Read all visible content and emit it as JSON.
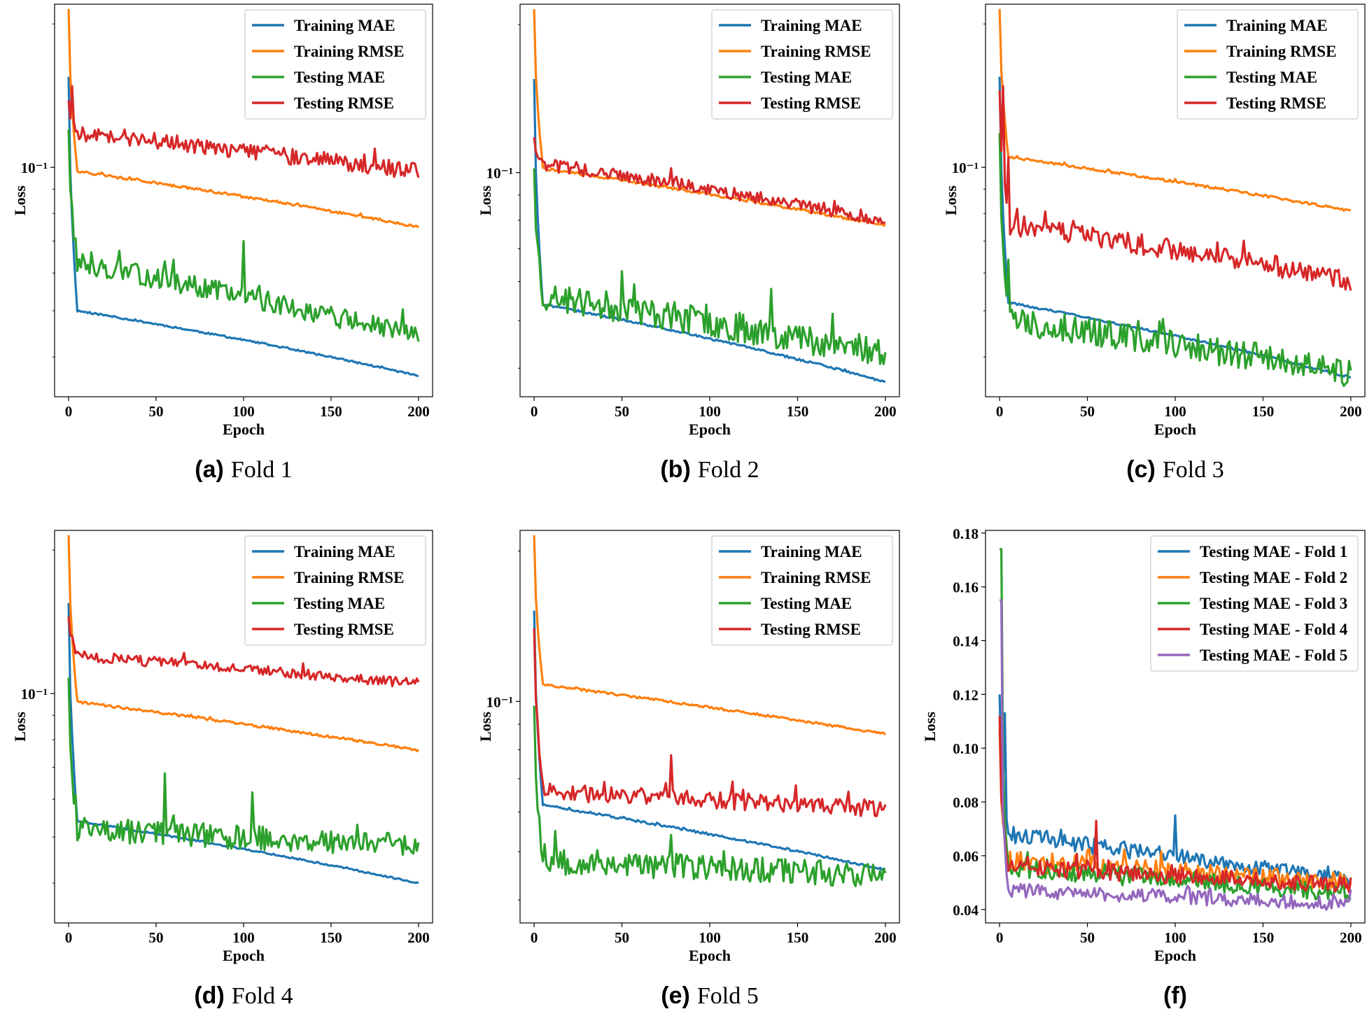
{
  "figure": {
    "colors": {
      "blue": "#1f77b4",
      "orange": "#ff7f0e",
      "green": "#2ca02c",
      "red": "#d62728",
      "purple": "#9467bd"
    }
  },
  "chart_data": [
    {
      "id": "a",
      "caption_letter": "(a)",
      "caption_text": "Fold 1",
      "type": "line",
      "yscale": "log",
      "xlabel": "Epoch",
      "ylabel": "Loss",
      "xlim": [
        -8,
        208
      ],
      "ylim": [
        0.033,
        0.22
      ],
      "x_ticks": [
        0,
        50,
        100,
        150,
        200
      ],
      "x_tick_labels": [
        "0",
        "50",
        "100",
        "150",
        "200"
      ],
      "y_ticks": [
        0.1
      ],
      "y_tick_labels": [
        "10⁻¹"
      ],
      "legend_position": "top-right",
      "series": [
        {
          "name": "Training MAE",
          "color": "blue",
          "start": 0.155,
          "drop": 0.05,
          "end": 0.0365,
          "noise": 0.004,
          "seed": 11
        },
        {
          "name": "Training RMSE",
          "color": "orange",
          "start": 0.215,
          "drop": 0.098,
          "end": 0.075,
          "noise": 0.006,
          "seed": 12
        },
        {
          "name": "Testing MAE",
          "color": "green",
          "start": 0.12,
          "drop": 0.063,
          "end": 0.044,
          "noise": 0.05,
          "spikes": [
            [
              60,
              0.064
            ],
            [
              100,
              0.07
            ]
          ],
          "seed": 13
        },
        {
          "name": "Testing RMSE",
          "color": "red",
          "start": 0.138,
          "drop": 0.118,
          "end": 0.098,
          "noise": 0.04,
          "spikes": [
            [
              2,
              0.148
            ]
          ],
          "seed": 14
        }
      ]
    },
    {
      "id": "b",
      "caption_letter": "(b)",
      "caption_text": "Fold 2",
      "type": "line",
      "yscale": "log",
      "xlabel": "Epoch",
      "ylabel": "Loss",
      "xlim": [
        -8,
        208
      ],
      "ylim": [
        0.035,
        0.22
      ],
      "x_ticks": [
        0,
        50,
        100,
        150,
        200
      ],
      "x_tick_labels": [
        "0",
        "50",
        "100",
        "150",
        "200"
      ],
      "y_ticks": [
        0.1
      ],
      "y_tick_labels": [
        "10⁻¹"
      ],
      "legend_position": "top-right",
      "series": [
        {
          "name": "Training MAE",
          "color": "blue",
          "start": 0.155,
          "drop": 0.054,
          "end": 0.0375,
          "noise": 0.005,
          "seed": 21
        },
        {
          "name": "Training RMSE",
          "color": "orange",
          "start": 0.215,
          "drop": 0.102,
          "end": 0.078,
          "noise": 0.006,
          "seed": 22
        },
        {
          "name": "Testing MAE",
          "color": "green",
          "start": 0.102,
          "drop": 0.056,
          "end": 0.043,
          "noise": 0.07,
          "spikes": [
            [
              50,
              0.063
            ],
            [
              135,
              0.058
            ]
          ],
          "seed": 23
        },
        {
          "name": "Testing RMSE",
          "color": "red",
          "start": 0.118,
          "drop": 0.104,
          "end": 0.08,
          "noise": 0.03,
          "seed": 24
        }
      ]
    },
    {
      "id": "c",
      "caption_letter": "(c)",
      "caption_text": "Fold 3",
      "type": "line",
      "yscale": "log",
      "xlabel": "Epoch",
      "ylabel": "Loss",
      "xlim": [
        -8,
        208
      ],
      "ylim": [
        0.033,
        0.22
      ],
      "x_ticks": [
        0,
        50,
        100,
        150,
        200
      ],
      "x_tick_labels": [
        "0",
        "50",
        "100",
        "150",
        "200"
      ],
      "y_ticks": [
        0.1
      ],
      "y_tick_labels": [
        "10⁻¹"
      ],
      "legend_position": "top-right",
      "series": [
        {
          "name": "Training MAE",
          "color": "blue",
          "start": 0.155,
          "drop": 0.052,
          "end": 0.0362,
          "noise": 0.005,
          "seed": 31
        },
        {
          "name": "Training RMSE",
          "color": "orange",
          "start": 0.215,
          "drop": 0.105,
          "end": 0.081,
          "noise": 0.006,
          "seed": 32
        },
        {
          "name": "Testing MAE",
          "color": "green",
          "start": 0.118,
          "drop": 0.048,
          "end": 0.037,
          "noise": 0.07,
          "spikes": [
            [
              5,
              0.064
            ]
          ],
          "seed": 33
        },
        {
          "name": "Testing RMSE",
          "color": "red",
          "start": 0.145,
          "drop": 0.076,
          "end": 0.058,
          "noise": 0.05,
          "spikes": [
            [
              2,
              0.148
            ],
            [
              5,
              0.105
            ]
          ],
          "seed": 34
        }
      ]
    },
    {
      "id": "d",
      "caption_letter": "(d)",
      "caption_text": "Fold 4",
      "type": "line",
      "yscale": "log",
      "xlabel": "Epoch",
      "ylabel": "Loss",
      "xlim": [
        -8,
        208
      ],
      "ylim": [
        0.033,
        0.22
      ],
      "x_ticks": [
        0,
        50,
        100,
        150,
        200
      ],
      "x_tick_labels": [
        "0",
        "50",
        "100",
        "150",
        "200"
      ],
      "y_ticks": [
        0.1
      ],
      "y_tick_labels": [
        "10⁻¹"
      ],
      "legend_position": "top-right",
      "series": [
        {
          "name": "Training MAE",
          "color": "blue",
          "start": 0.155,
          "drop": 0.054,
          "end": 0.04,
          "noise": 0.004,
          "seed": 41
        },
        {
          "name": "Training RMSE",
          "color": "orange",
          "start": 0.215,
          "drop": 0.096,
          "end": 0.076,
          "noise": 0.006,
          "seed": 42
        },
        {
          "name": "Testing MAE",
          "color": "green",
          "start": 0.108,
          "drop": 0.052,
          "end": 0.048,
          "noise": 0.06,
          "spikes": [
            [
              55,
              0.068
            ],
            [
              105,
              0.062
            ]
          ],
          "seed": 43
        },
        {
          "name": "Testing RMSE",
          "color": "red",
          "start": 0.145,
          "drop": 0.12,
          "end": 0.105,
          "noise": 0.025,
          "seed": 44
        }
      ]
    },
    {
      "id": "e",
      "caption_letter": "(e)",
      "caption_text": "Fold 5",
      "type": "line",
      "yscale": "log",
      "xlabel": "Epoch",
      "ylabel": "Loss",
      "xlim": [
        -8,
        208
      ],
      "ylim": [
        0.036,
        0.22
      ],
      "x_ticks": [
        0,
        50,
        100,
        150,
        200
      ],
      "x_tick_labels": [
        "0",
        "50",
        "100",
        "150",
        "200"
      ],
      "y_ticks": [
        0.1
      ],
      "y_tick_labels": [
        "10⁻¹"
      ],
      "legend_position": "top-right",
      "series": [
        {
          "name": "Training MAE",
          "color": "blue",
          "start": 0.152,
          "drop": 0.062,
          "end": 0.046,
          "noise": 0.005,
          "seed": 51
        },
        {
          "name": "Training RMSE",
          "color": "orange",
          "start": 0.215,
          "drop": 0.108,
          "end": 0.086,
          "noise": 0.005,
          "seed": 52
        },
        {
          "name": "Testing MAE",
          "color": "green",
          "start": 0.098,
          "drop": 0.048,
          "end": 0.045,
          "noise": 0.06,
          "spikes": [
            [
              12,
              0.055
            ],
            [
              78,
              0.054
            ]
          ],
          "seed": 53
        },
        {
          "name": "Testing RMSE",
          "color": "red",
          "start": 0.14,
          "drop": 0.066,
          "end": 0.061,
          "noise": 0.04,
          "spikes": [
            [
              78,
              0.078
            ]
          ],
          "seed": 54
        }
      ]
    },
    {
      "id": "f",
      "caption_letter": "(f)",
      "caption_text": "",
      "type": "line",
      "yscale": "linear",
      "xlabel": "Epoch",
      "ylabel": "Loss",
      "xlim": [
        -8,
        208
      ],
      "ylim": [
        0.035,
        0.181
      ],
      "x_ticks": [
        0,
        50,
        100,
        150,
        200
      ],
      "x_tick_labels": [
        "0",
        "50",
        "100",
        "150",
        "200"
      ],
      "y_ticks": [
        0.04,
        0.06,
        0.08,
        0.1,
        0.12,
        0.14,
        0.16,
        0.18
      ],
      "y_tick_labels": [
        "0.04",
        "0.06",
        "0.08",
        "0.10",
        "0.12",
        "0.14",
        "0.16",
        "0.18"
      ],
      "legend_position": "top-right",
      "series": [
        {
          "name": "Testing MAE - Fold 1",
          "color": "blue",
          "start": 0.12,
          "drop": 0.068,
          "end": 0.051,
          "noise": 0.05,
          "spikes": [
            [
              3,
              0.113
            ],
            [
              100,
              0.075
            ]
          ],
          "seed": 61
        },
        {
          "name": "Testing MAE - Fold 2",
          "color": "orange",
          "start": 0.107,
          "drop": 0.058,
          "end": 0.05,
          "noise": 0.07,
          "spikes": [
            [
              50,
              0.062
            ]
          ],
          "seed": 62
        },
        {
          "name": "Testing MAE - Fold 3",
          "color": "green",
          "start": 0.174,
          "drop": 0.056,
          "end": 0.046,
          "noise": 0.07,
          "spikes": [
            [
              1,
              0.174
            ]
          ],
          "seed": 63
        },
        {
          "name": "Testing MAE - Fold 4",
          "color": "red",
          "start": 0.112,
          "drop": 0.056,
          "end": 0.049,
          "noise": 0.06,
          "spikes": [
            [
              55,
              0.073
            ]
          ],
          "seed": 64
        },
        {
          "name": "Testing MAE - Fold 5",
          "color": "purple",
          "start": 0.155,
          "drop": 0.047,
          "end": 0.042,
          "noise": 0.06,
          "spikes": [
            [
              1,
              0.155
            ]
          ],
          "seed": 65
        }
      ]
    }
  ]
}
